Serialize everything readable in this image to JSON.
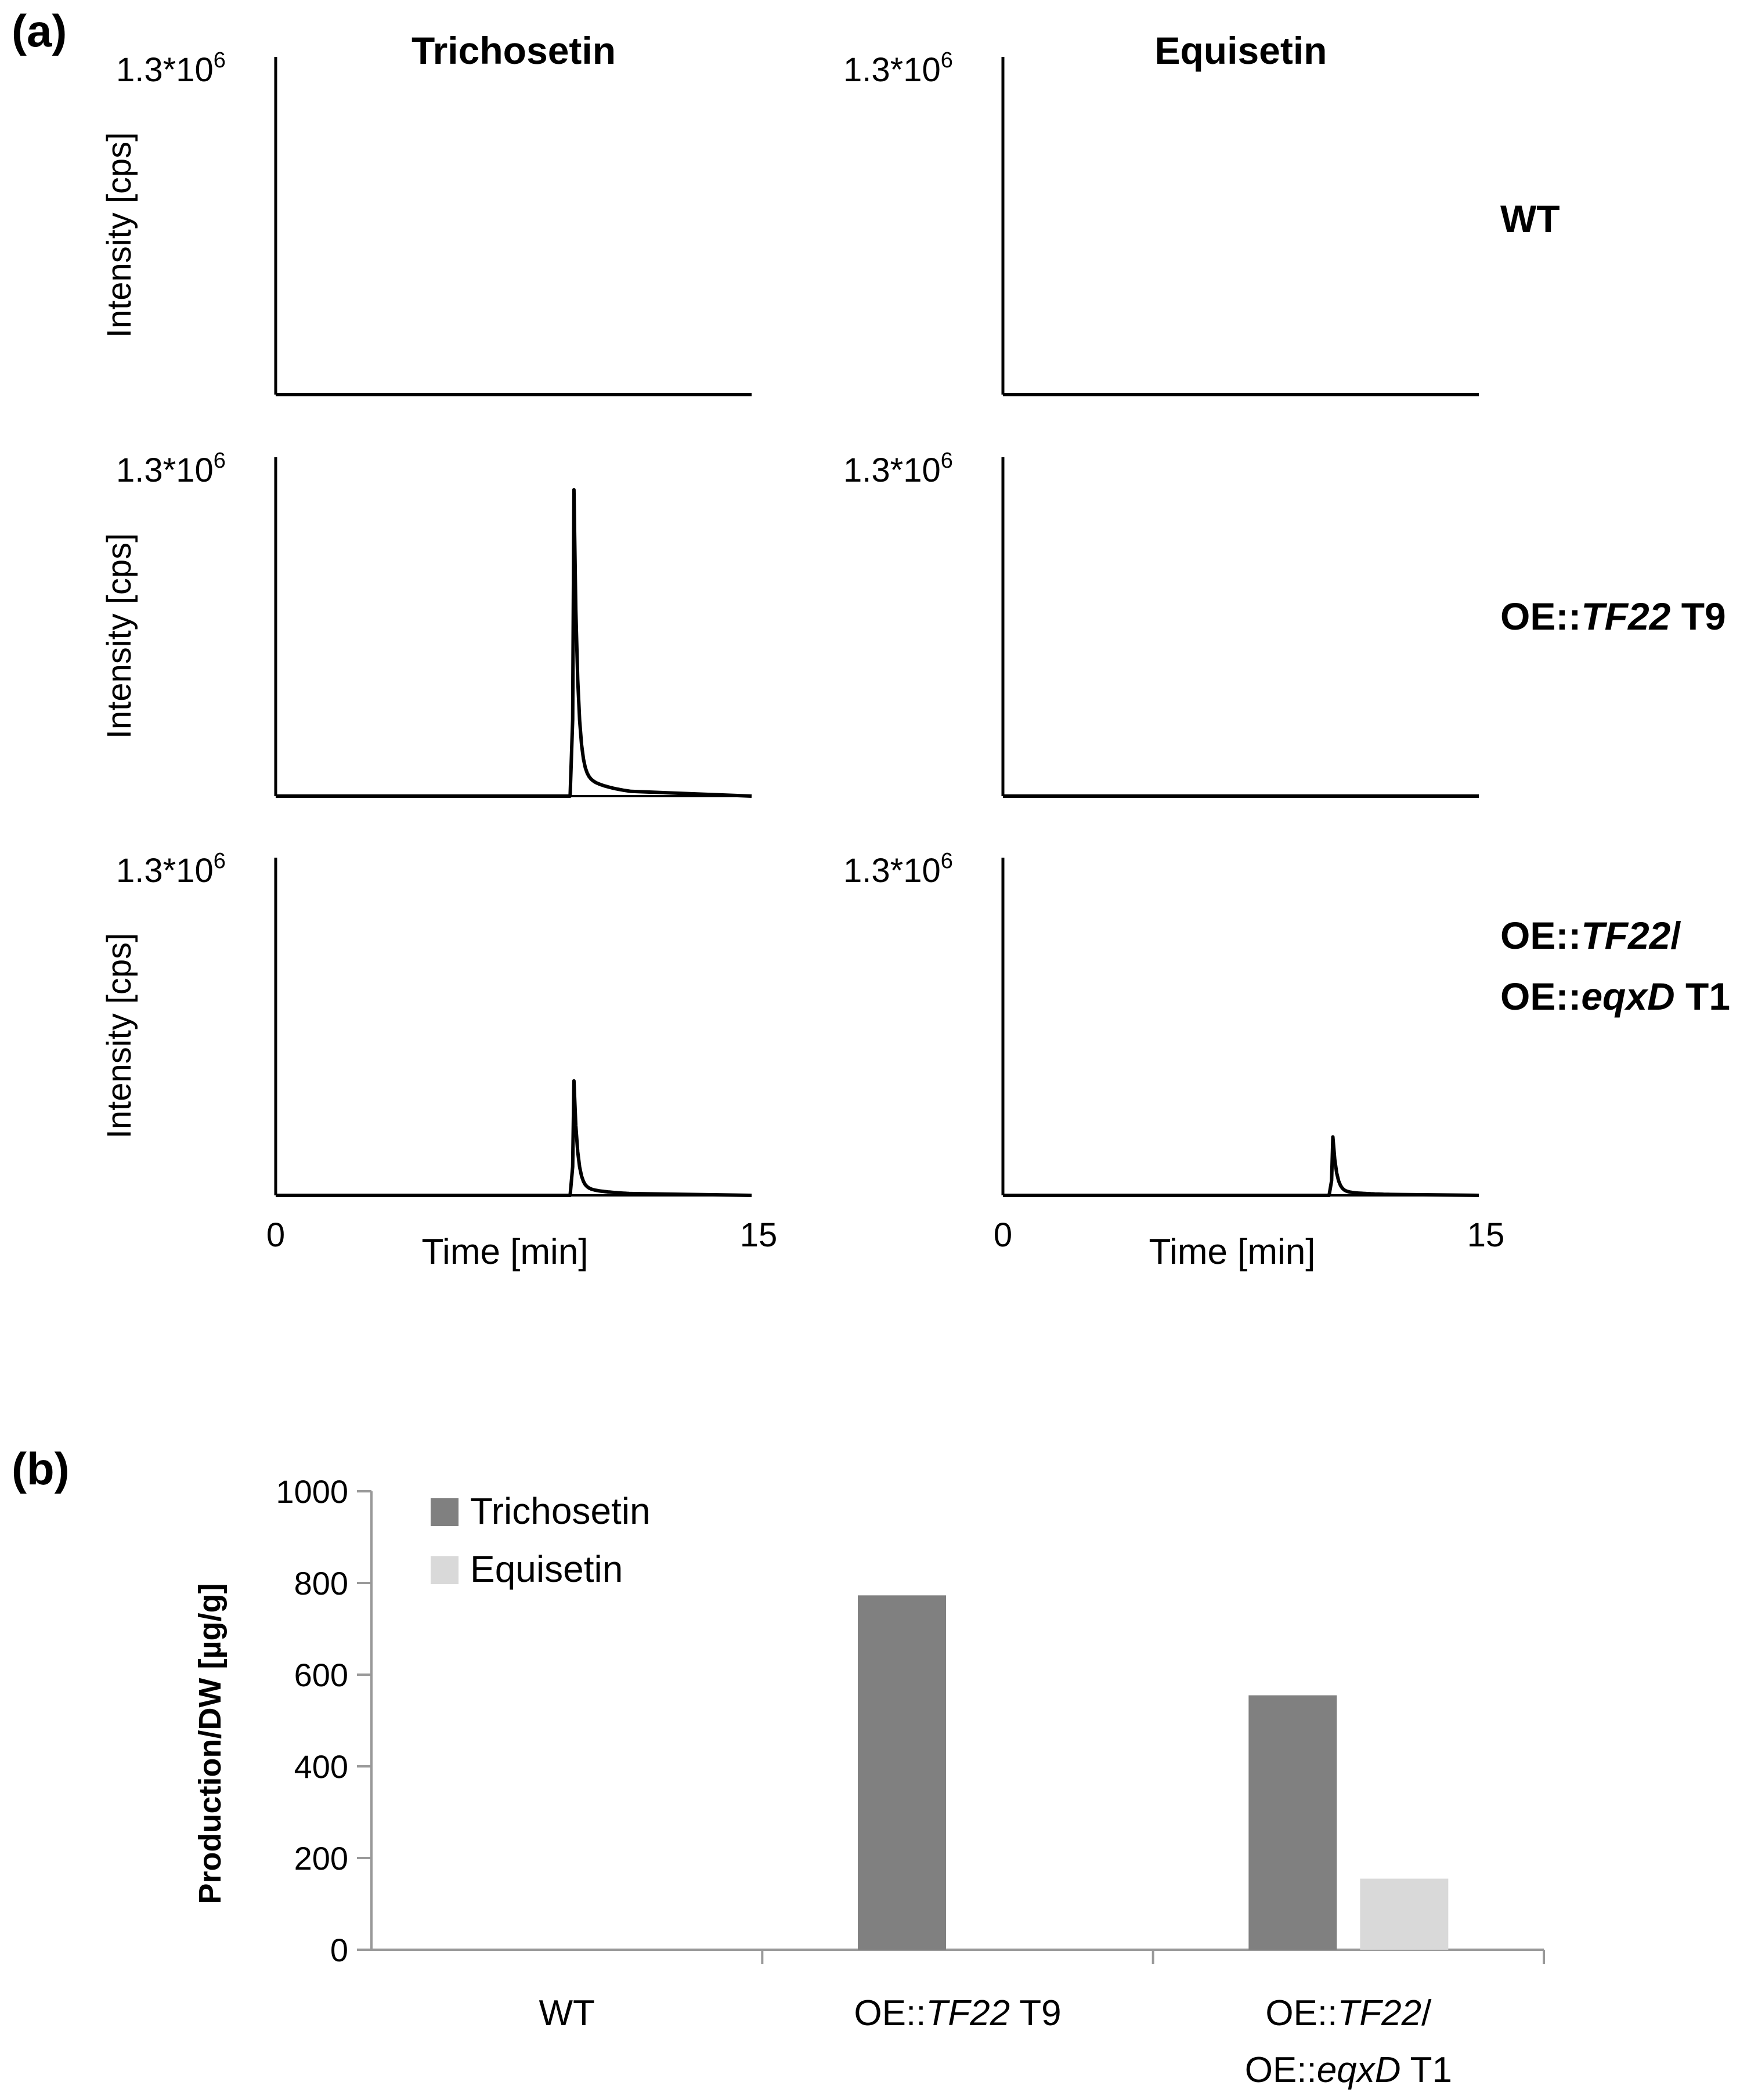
{
  "figure": {
    "panel_a_label": "(a)",
    "panel_b_label": "(b)"
  },
  "chart_data": [
    {
      "type": "line",
      "panel": "(a)",
      "description": "Chromatograms (intensity vs time)",
      "column_titles": [
        "Trichosetin",
        "Equisetin"
      ],
      "row_labels": [
        [
          {
            "text": "WT",
            "italic": false
          }
        ],
        [
          {
            "text": "OE::",
            "italic": false
          },
          {
            "text": "TF22",
            "italic": true
          },
          {
            "text": " T9",
            "italic": false
          }
        ],
        [
          {
            "text": "OE::",
            "italic": false
          },
          {
            "text": "TF22",
            "italic": true
          },
          {
            "text": "/",
            "italic": false
          }
        ],
        [
          {
            "text": "OE::",
            "italic": false
          },
          {
            "text": "eqxD",
            "italic": true
          },
          {
            "text": " T1",
            "italic": false
          }
        ]
      ],
      "ylabel": "Intensity [cps]",
      "ymax_label": {
        "base": "1.3*10",
        "exp": "6"
      },
      "ylim": [
        0,
        1300000
      ],
      "xlabel": "Time [min]",
      "xlim": [
        0,
        15
      ],
      "xticks": [
        "0",
        "15"
      ],
      "series": [
        {
          "row": "WT",
          "compound": "Trichosetin",
          "peak_time": null,
          "peak_height": 0
        },
        {
          "row": "WT",
          "compound": "Equisetin",
          "peak_time": null,
          "peak_height": 0
        },
        {
          "row": "OE::TF22 T9",
          "compound": "Trichosetin",
          "peak_time": 9.4,
          "peak_height": 1200000
        },
        {
          "row": "OE::TF22 T9",
          "compound": "Equisetin",
          "peak_time": null,
          "peak_height": 0
        },
        {
          "row": "OE::TF22/OE::eqxD T1",
          "compound": "Trichosetin",
          "peak_time": 9.4,
          "peak_height": 450000
        },
        {
          "row": "OE::TF22/OE::eqxD T1",
          "compound": "Equisetin",
          "peak_time": 10.4,
          "peak_height": 230000
        }
      ]
    },
    {
      "type": "bar",
      "panel": "(b)",
      "ylabel": "Production/DW [µg/g]",
      "ylim": [
        0,
        1000
      ],
      "yticks": [
        0,
        200,
        400,
        600,
        800,
        1000
      ],
      "categories": [
        [
          {
            "text": "WT",
            "italic": false
          }
        ],
        [
          {
            "text": "OE::",
            "italic": false
          },
          {
            "text": "TF22",
            "italic": true
          },
          {
            "text": " T9",
            "italic": false
          }
        ],
        [
          {
            "text": "OE::",
            "italic": false
          },
          {
            "text": "TF22",
            "italic": true
          },
          {
            "text": "/",
            "italic": false
          }
        ]
      ],
      "category_second_line": [
        null,
        null,
        [
          {
            "text": "OE::",
            "italic": false
          },
          {
            "text": "eqxD",
            "italic": true
          },
          {
            "text": " T1",
            "italic": false
          }
        ]
      ],
      "legend_position": "top-left",
      "series": [
        {
          "name": "Trichosetin",
          "color": "#808080",
          "values": [
            0,
            773,
            555
          ]
        },
        {
          "name": "Equisetin",
          "color": "#d9d9d9",
          "values": [
            0,
            0,
            155
          ]
        }
      ]
    }
  ]
}
